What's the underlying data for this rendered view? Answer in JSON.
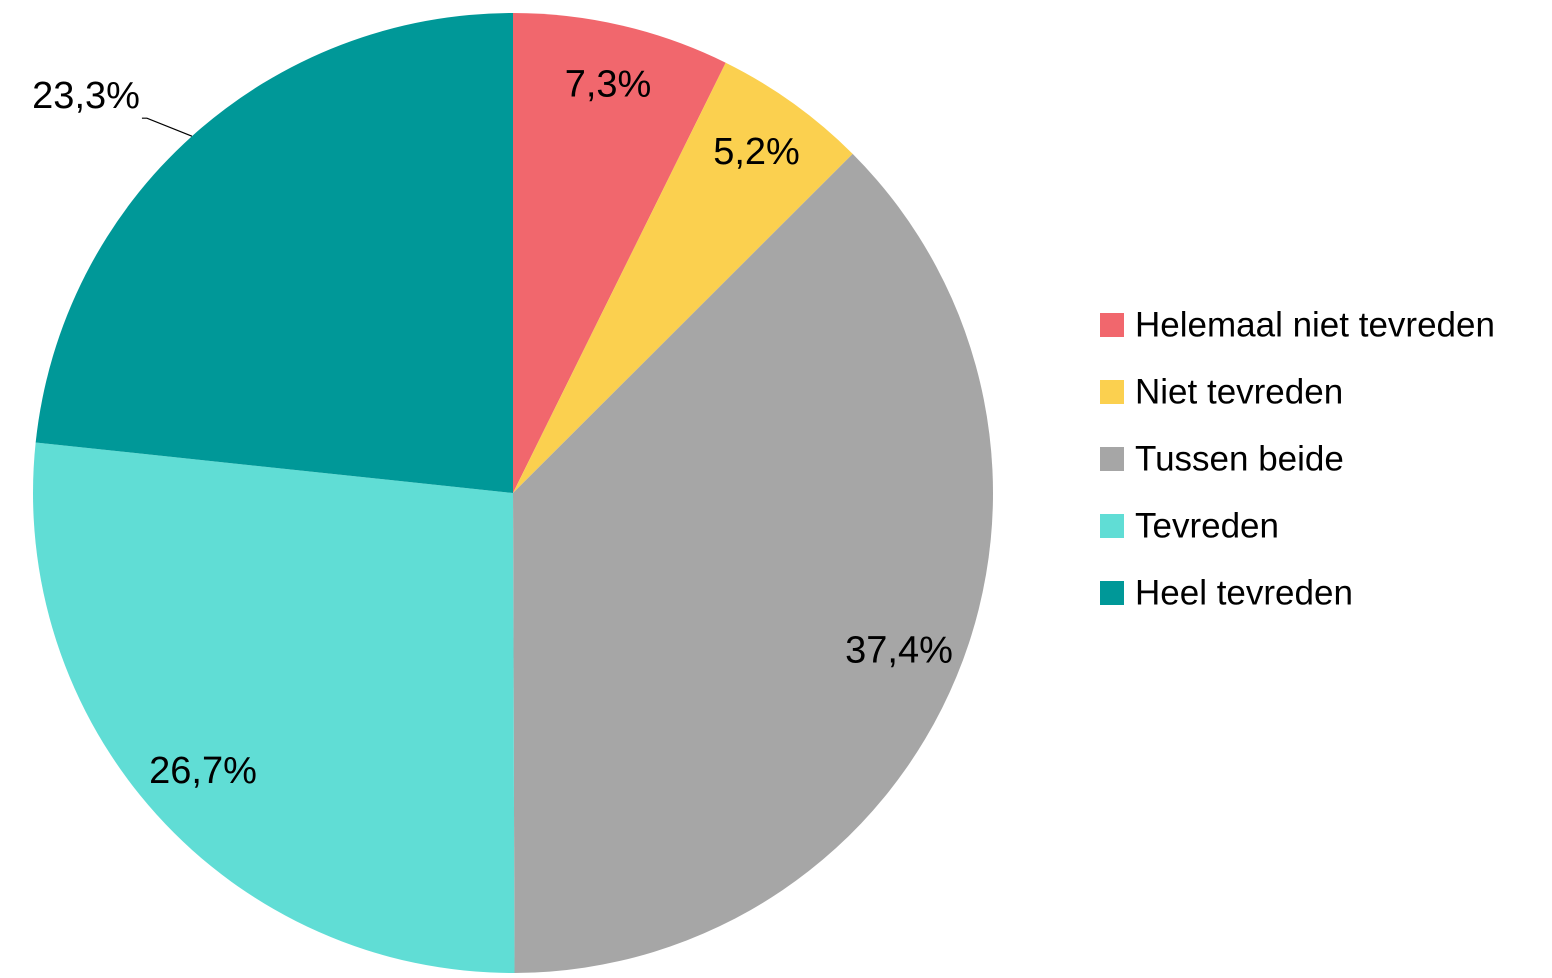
{
  "chart_data": {
    "type": "pie",
    "categories": [
      "Helemaal niet tevreden",
      "Niet tevreden",
      "Tussen beide",
      "Tevreden",
      "Heel tevreden"
    ],
    "values": [
      7.3,
      5.2,
      37.4,
      26.7,
      23.3
    ],
    "value_labels": [
      "7,3%",
      "5,2%",
      "37,4%",
      "26,7%",
      "23,3%"
    ],
    "colors": [
      "#f1676d",
      "#fbd04f",
      "#a6a6a6",
      "#60ddd5",
      "#009898"
    ],
    "legend": "right"
  }
}
